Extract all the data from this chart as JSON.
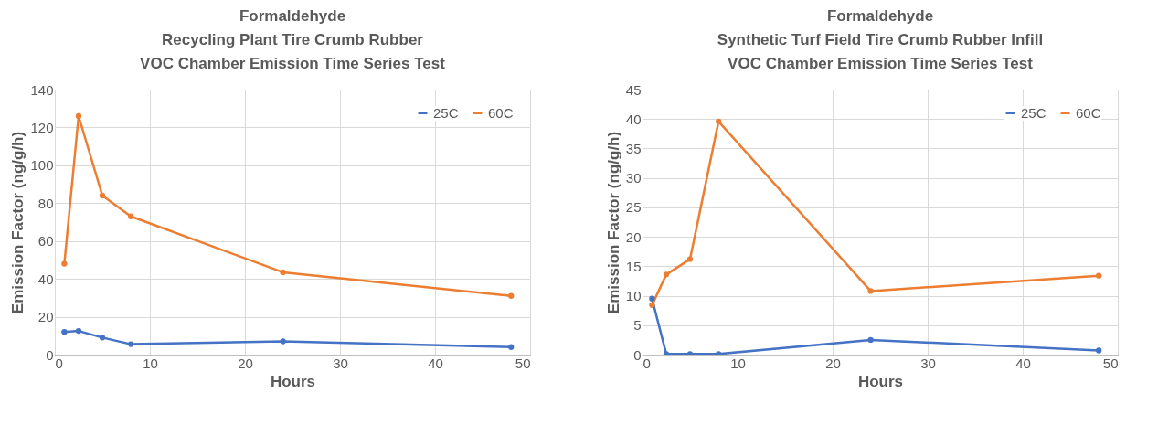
{
  "chart_data": [
    {
      "type": "line",
      "title": "Formaldehyde\nRecycling Plant Tire Crumb Rubber\nVOC Chamber Emission Time Series Test",
      "xlabel": "Hours",
      "ylabel": "Emission Factor  (ng/g/h)",
      "x": [
        1,
        2.5,
        5,
        8,
        24,
        48
      ],
      "xlim": [
        0,
        50
      ],
      "xticks": [
        0,
        10,
        20,
        30,
        40,
        50
      ],
      "ylim": [
        0,
        140
      ],
      "yticks": [
        0,
        20,
        40,
        60,
        80,
        100,
        120,
        140
      ],
      "grid": true,
      "legend": "top right",
      "marker": "circle",
      "series": [
        {
          "name": "25C",
          "color": "#4472c4",
          "values": [
            12,
            12.5,
            9,
            5.5,
            7,
            4
          ]
        },
        {
          "name": "60C",
          "color": "#ed7d31",
          "values": [
            48,
            126,
            84,
            73,
            43.5,
            31
          ]
        }
      ]
    },
    {
      "type": "line",
      "title": "Formaldehyde\nSynthetic Turf Field Tire Crumb Rubber Infill\nVOC Chamber Emission Time Series Test",
      "xlabel": "Hours",
      "ylabel": "Emission Factor  (ng/g/h)",
      "x": [
        1,
        2.5,
        5,
        8,
        24,
        48
      ],
      "xlim": [
        0,
        50
      ],
      "xticks": [
        0,
        10,
        20,
        30,
        40,
        50
      ],
      "ylim": [
        0,
        45
      ],
      "yticks": [
        0,
        5,
        10,
        15,
        20,
        25,
        30,
        35,
        40,
        45
      ],
      "grid": true,
      "legend": "top right",
      "marker": "circle",
      "series": [
        {
          "name": "25C",
          "color": "#4472c4",
          "values": [
            9.5,
            0.1,
            0.1,
            0.1,
            2.5,
            0.7
          ]
        },
        {
          "name": "60C",
          "color": "#ed7d31",
          "values": [
            8.4,
            13.6,
            16.2,
            39.6,
            10.8,
            13.4
          ]
        }
      ]
    }
  ]
}
